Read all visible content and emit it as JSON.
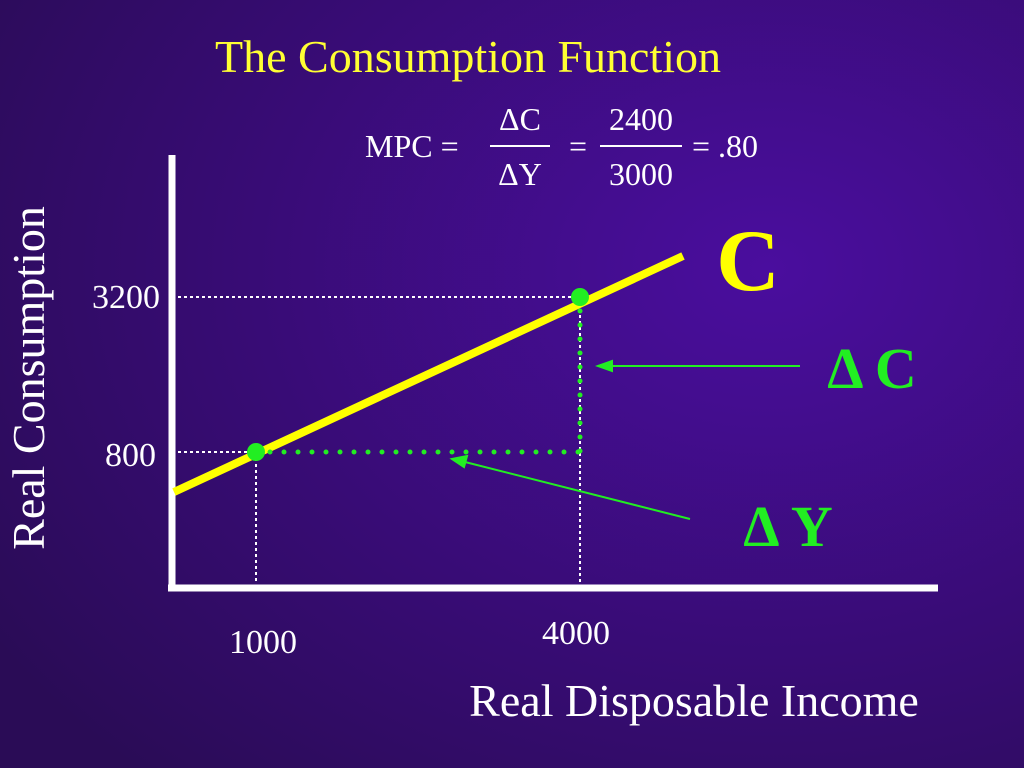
{
  "title": "The Consumption Function",
  "formula": {
    "lhs": "MPC =",
    "num1": "ΔC",
    "den1": "ΔY",
    "eq": "=",
    "num2": "2400",
    "den2": "3000",
    "result": "= .80"
  },
  "axes": {
    "y_label": "Real Consumption",
    "x_label": "Real Disposable Income",
    "y_ticks": [
      "3200",
      "800"
    ],
    "x_ticks": [
      "1000",
      "4000"
    ]
  },
  "labels": {
    "line": "C",
    "delta_c": "Δ C",
    "delta_y": "Δ Y"
  }
}
